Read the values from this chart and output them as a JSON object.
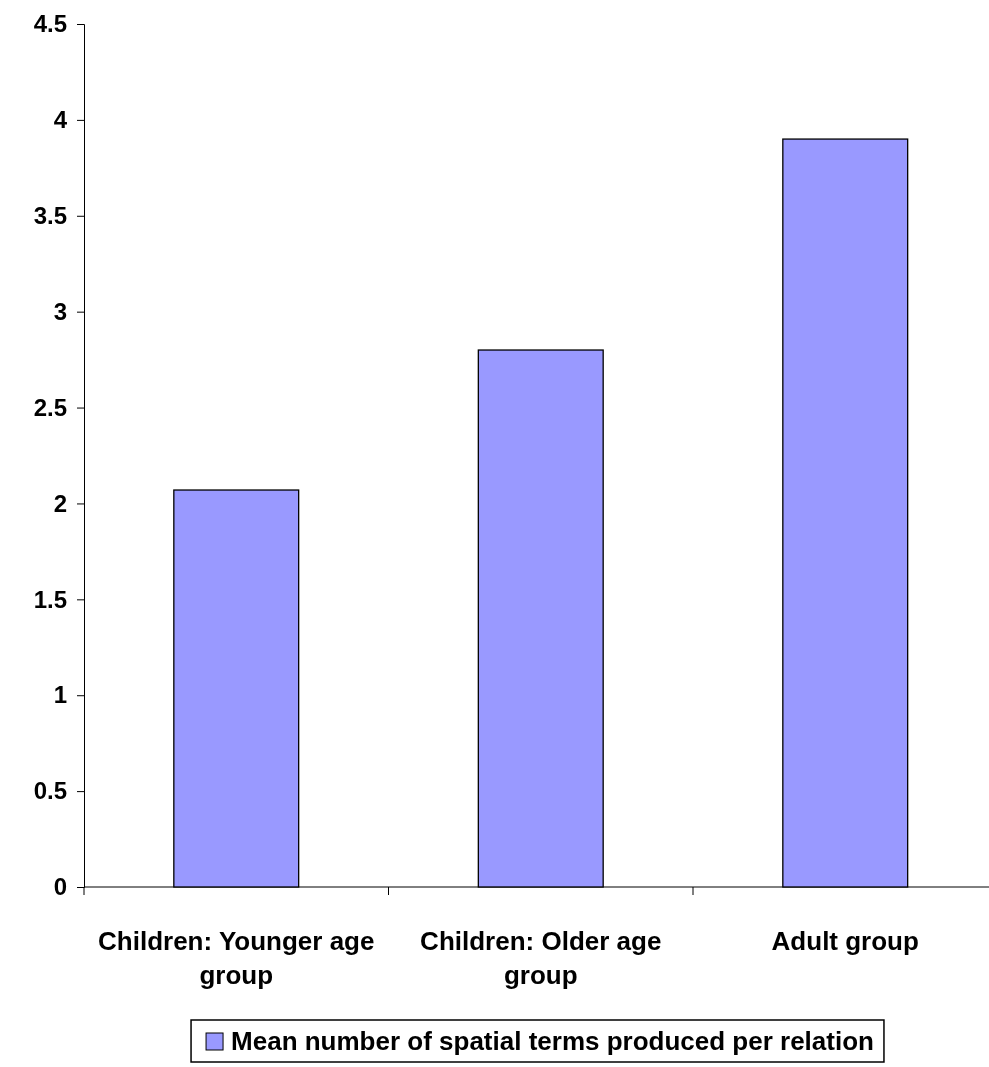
{
  "chart_data": {
    "type": "bar",
    "categories": [
      "Children: Younger age group",
      "Children: Older age group",
      "Adult group"
    ],
    "series": [
      {
        "name": "Mean number of spatial terms produced per relation",
        "color": "#9999ff",
        "values": [
          2.07,
          2.8,
          3.9
        ]
      }
    ],
    "ylim": [
      0,
      4.5
    ],
    "yticks": [
      0,
      0.5,
      1,
      1.5,
      2,
      2.5,
      3,
      3.5,
      4,
      4.5
    ],
    "grid": false,
    "legend": "bottom"
  }
}
